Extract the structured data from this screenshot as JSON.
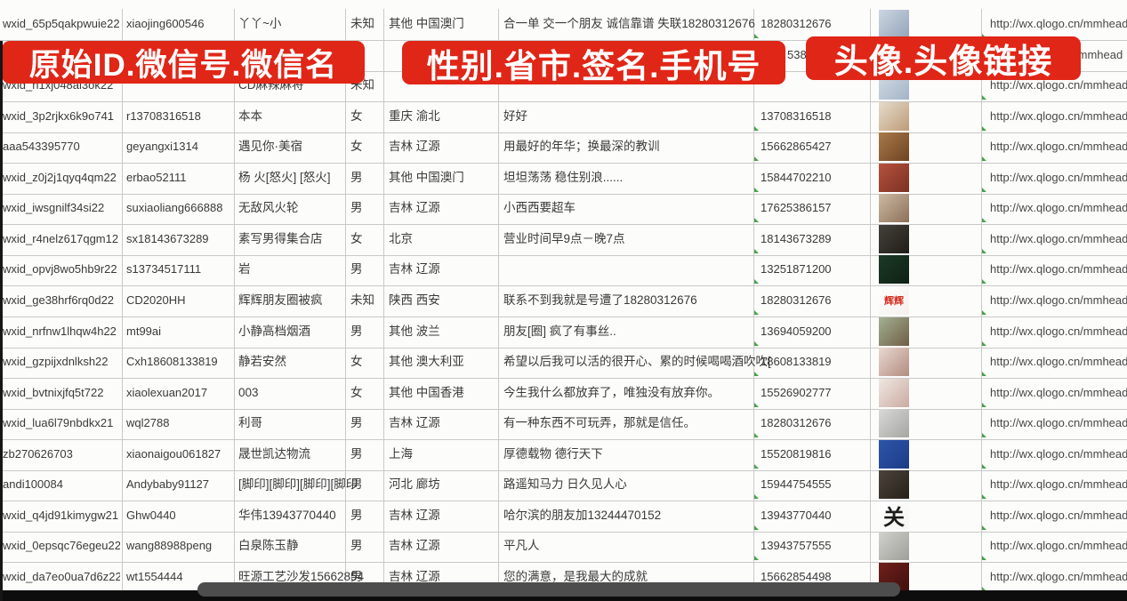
{
  "banners": [
    {
      "label": "原始ID.微信号.微信名"
    },
    {
      "label": "性别.省市.签名.手机号"
    },
    {
      "label": "头像.头像链接"
    }
  ],
  "accent_color": "#e02617",
  "link_domain": "http://wx.qlogo.cn/mmhead",
  "rows": [
    {
      "id": "wxid_65p5qakpwuie22",
      "account": "xiaojing600546",
      "name": "丫丫~小",
      "gender": "未知",
      "region": "其他 中国澳门",
      "signature": "合一单 交一个朋友 诚信靠谱 失联18280312676",
      "phone": "18280312676",
      "link": "http://wx.qlogo.cn/mmhead",
      "avatar": {
        "desc": "woman-selfie-photo",
        "colors": [
          "#cdd6e2",
          "#93a4b8"
        ]
      }
    },
    {
      "id": "",
      "account": "",
      "name": "",
      "gender": "",
      "region": "",
      "signature": "",
      "phone": "5386",
      "link": "/mmhead",
      "covered": true,
      "avatar": {
        "desc": "photo-partially-hidden",
        "colors": [
          "#c3cfdd",
          "#9fb2c6"
        ]
      }
    },
    {
      "id": "wxid_h1xj048al3ok22",
      "account": "",
      "name": "CD麻辣麻将",
      "gender": "未知",
      "region": "",
      "signature": "",
      "phone": "",
      "link": "http://wx.qlogo.cn/mmhead",
      "avatar": {
        "desc": "woman-photo",
        "colors": [
          "#d3dce6",
          "#a3b4c6"
        ]
      }
    },
    {
      "id": "wxid_3p2rjkx6k9o741",
      "account": "r13708316518",
      "name": "本本",
      "gender": "女",
      "region": "重庆 渝北",
      "signature": "好好",
      "phone": "13708316518",
      "link": "http://wx.qlogo.cn/mmhead",
      "avatar": {
        "desc": "woman-white-dress-photo",
        "colors": [
          "#e6dccb",
          "#bd9b79"
        ]
      }
    },
    {
      "id": "aaa543395770",
      "account": "geyangxi1314",
      "name": "遇见你·美宿",
      "gender": "女",
      "region": "吉林 辽源",
      "signature": "用最好的年华；换最深的教训",
      "phone": "15662865427",
      "link": "http://wx.qlogo.cn/mmhead",
      "avatar": {
        "desc": "brown-figurines-photo",
        "colors": [
          "#a87a4a",
          "#6e4322"
        ]
      }
    },
    {
      "id": "wxid_z0j2j1qyq4qm22",
      "account": "erbao52111",
      "name": "杨 火[怒火] [怒火]",
      "gender": "男",
      "region": "其他 中国澳门",
      "signature": "坦坦荡荡 稳住别浪......",
      "phone": "15844702210",
      "link": "http://wx.qlogo.cn/mmhead",
      "avatar": {
        "desc": "red-group-photo",
        "colors": [
          "#b5523e",
          "#7c3023"
        ]
      }
    },
    {
      "id": "wxid_iwsgnilf34si22",
      "account": "suxiaoliang666888",
      "name": "无敌风火轮",
      "gender": "男",
      "region": "吉林 辽源",
      "signature": "小西西要超车",
      "phone": "17625386157",
      "link": "http://wx.qlogo.cn/mmhead",
      "avatar": {
        "desc": "woman-and-child-photo",
        "colors": [
          "#cdbaa4",
          "#8d7058"
        ]
      }
    },
    {
      "id": "wxid_r4nelz617qgm12",
      "account": "sx18143673289",
      "name": "素写男得集合店",
      "gender": "女",
      "region": "北京",
      "signature": "营业时间早9点－晚7点",
      "phone": "18143673289",
      "link": "http://wx.qlogo.cn/mmhead",
      "avatar": {
        "desc": "dark-storefront-photo",
        "colors": [
          "#45403a",
          "#201d19"
        ]
      }
    },
    {
      "id": "wxid_opvj8wo5hb9r22",
      "account": "s13734517111",
      "name": "岩",
      "gender": "男",
      "region": "吉林 辽源",
      "signature": "",
      "phone": "13251871200",
      "link": "http://wx.qlogo.cn/mmhead",
      "avatar": {
        "desc": "dark-green-neon-sign-photo",
        "colors": [
          "#1d3a26",
          "#0e2015"
        ]
      }
    },
    {
      "id": "wxid_ge38hrf6rq0d22",
      "account": "CD2020HH",
      "name": "辉辉朋友圈被疯",
      "gender": "未知",
      "region": "陕西 西安",
      "signature": "联系不到我就是号遭了18280312676",
      "phone": "18280312676",
      "link": "http://wx.qlogo.cn/mmhead",
      "avatar": {
        "desc": "white-with-red-text",
        "text": "辉辉",
        "text_color": "#d42a1d",
        "colors": [
          "#ffffff",
          "#f4f0ee"
        ]
      }
    },
    {
      "id": "wxid_nrfnw1lhqw4h22",
      "account": "mt99ai",
      "name": "小静高档烟酒",
      "gender": "男",
      "region": "其他 波兰",
      "signature": "朋友[圈] 疯了有事丝..",
      "phone": "13694059200",
      "link": "http://wx.qlogo.cn/mmhead",
      "avatar": {
        "desc": "woman-sunglasses-photo",
        "colors": [
          "#a3b091",
          "#6f5d46"
        ]
      }
    },
    {
      "id": "wxid_gzpijxdnlksh22",
      "account": "Cxh18608133819",
      "name": "静若安然",
      "gender": "女",
      "region": "其他 澳大利亚",
      "signature": "希望以后我可以活的很开心、累的时候喝喝酒吹吹[",
      "phone": "18608133819",
      "link": "http://wx.qlogo.cn/mmhead",
      "avatar": {
        "desc": "woman-selfie-photo",
        "colors": [
          "#e9d8d0",
          "#b28c80"
        ]
      }
    },
    {
      "id": "wxid_bvtnixjfq5t722",
      "account": "xiaolexuan2017",
      "name": "003",
      "gender": "女",
      "region": "其他 中国香港",
      "signature": "今生我什么都放弃了，唯独没有放弃你。",
      "phone": "15526902777",
      "link": "http://wx.qlogo.cn/mmhead",
      "avatar": {
        "desc": "woman-selfie-photo",
        "colors": [
          "#f0e7e3",
          "#c9aba1"
        ]
      }
    },
    {
      "id": "wxid_lua6l79nbdkx21",
      "account": "wql2788",
      "name": "利哥",
      "gender": "男",
      "region": "吉林 辽源",
      "signature": "有一种东西不可玩弄，那就是信任。",
      "phone": "18280312676",
      "link": "http://wx.qlogo.cn/mmhead",
      "avatar": {
        "desc": "person-white-hat-photo",
        "colors": [
          "#d9d9d7",
          "#a5a5a2"
        ]
      }
    },
    {
      "id": "zb270626703",
      "account": "xiaonaigou061827",
      "name": "晟世凯达物流",
      "gender": "男",
      "region": "上海",
      "signature": "厚德载物 德行天下",
      "phone": "15520819816",
      "link": "http://wx.qlogo.cn/mmhead",
      "avatar": {
        "desc": "blue-card-with-qr-code",
        "colors": [
          "#2e55aa",
          "#1c3b86"
        ]
      }
    },
    {
      "id": "andi100084",
      "account": "Andybaby91127",
      "name": "[脚印][脚印][脚印][脚印",
      "gender": "男",
      "region": "河北 廊坊",
      "signature": "路遥知马力 日久见人心",
      "phone": "15944754555",
      "link": "http://wx.qlogo.cn/mmhead",
      "avatar": {
        "desc": "dark-photo",
        "colors": [
          "#4c443c",
          "#262019"
        ]
      }
    },
    {
      "id": "wxid_q4jd91kimygw21",
      "account": "Ghw0440",
      "name": "华伟13943770440",
      "gender": "男",
      "region": "吉林 辽源",
      "signature": "哈尔滨的朋友加13244470152",
      "phone": "13943770440",
      "link": "http://wx.qlogo.cn/mmhead",
      "avatar": {
        "desc": "white-with-black-calligraphy",
        "text": "关",
        "text_color": "#1c1c1c",
        "colors": [
          "#ffffff",
          "#f6f5f3"
        ]
      }
    },
    {
      "id": "wxid_0epsqc76egeu22",
      "account": "wang88988peng",
      "name": "白泉陈玉静",
      "gender": "男",
      "region": "吉林 辽源",
      "signature": "平凡人",
      "phone": "13943757555",
      "link": "http://wx.qlogo.cn/mmhead",
      "avatar": {
        "desc": "gray-person-photo",
        "colors": [
          "#d1d1cd",
          "#9f9f9a"
        ]
      }
    },
    {
      "id": "wxid_da7eo0ua7d6z22",
      "account": "wt1554444",
      "name": "旺源工艺沙发15662854",
      "gender": "男",
      "region": "吉林 辽源",
      "signature": "您的满意，是我最大的成就",
      "phone": "15662854498",
      "link": "http://wx.qlogo.cn/mmhead",
      "avatar": {
        "desc": "dark-red-photo-china-text",
        "colors": [
          "#70201b",
          "#40100d"
        ]
      }
    }
  ]
}
